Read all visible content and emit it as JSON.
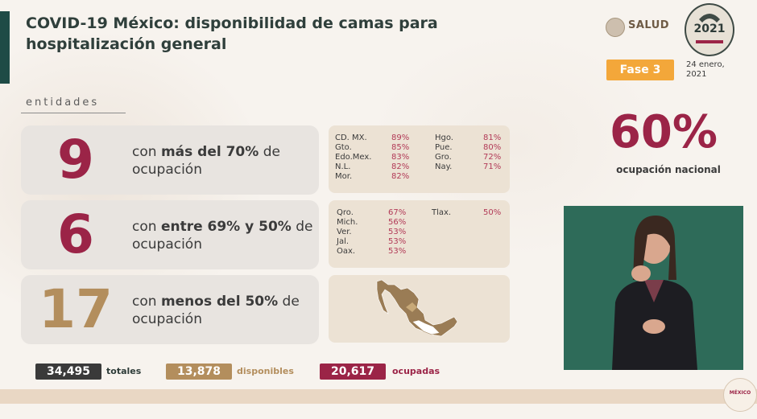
{
  "header": {
    "title": "COVID-19 México: disponibilidad de camas para hospitalización general",
    "salud_logo_text": "SALUD",
    "year_logo_text": "2021",
    "phase_label": "Fase 3",
    "date_line1": "24 enero,",
    "date_line2": "2021"
  },
  "section": {
    "label": "entidades"
  },
  "groups": [
    {
      "count": "9",
      "text_pre": "con ",
      "text_bold": "más del 70%",
      "text_post": " de ocupación",
      "states_col1": [
        {
          "name": "CD. MX.",
          "pct": "89%"
        },
        {
          "name": "Gto.",
          "pct": "85%"
        },
        {
          "name": "Edo.Mex.",
          "pct": "83%"
        },
        {
          "name": "N.L.",
          "pct": "82%"
        },
        {
          "name": "Mor.",
          "pct": "82%"
        }
      ],
      "states_col2": [
        {
          "name": "Hgo.",
          "pct": "81%"
        },
        {
          "name": "Pue.",
          "pct": "80%"
        },
        {
          "name": "Gro.",
          "pct": "72%"
        },
        {
          "name": "Nay.",
          "pct": "71%"
        }
      ]
    },
    {
      "count": "6",
      "text_pre": "con ",
      "text_bold": "entre 69% y 50%",
      "text_post": " de ocupación",
      "states_col1": [
        {
          "name": "Qro.",
          "pct": "67%"
        },
        {
          "name": "Mich.",
          "pct": "56%"
        },
        {
          "name": "Ver.",
          "pct": "53%"
        },
        {
          "name": "Jal.",
          "pct": "53%"
        },
        {
          "name": "Oax.",
          "pct": "53%"
        }
      ],
      "states_col2": [
        {
          "name": "Tlax.",
          "pct": "50%"
        }
      ]
    },
    {
      "count": "17",
      "text_pre": "con ",
      "text_bold": "menos del 50%",
      "text_post": " de ocupación"
    }
  ],
  "national": {
    "value": "60%",
    "label": "ocupación nacional"
  },
  "stats": {
    "total_value": "34,495",
    "total_label": "totales",
    "available_value": "13,878",
    "available_label": "disponibles",
    "occupied_value": "20,617",
    "occupied_label": "ocupadas"
  },
  "footer": {
    "logo_text": "MÉXICO"
  },
  "colors": {
    "accent_dark_green": "#1e4b46",
    "high_occupancy": "#9b2447",
    "low_occupancy": "#b38e5d",
    "phase_orange": "#f3a73a",
    "total_box": "#3a3a3a",
    "available_box": "#b38e5d",
    "occupied_box": "#9b2447"
  }
}
